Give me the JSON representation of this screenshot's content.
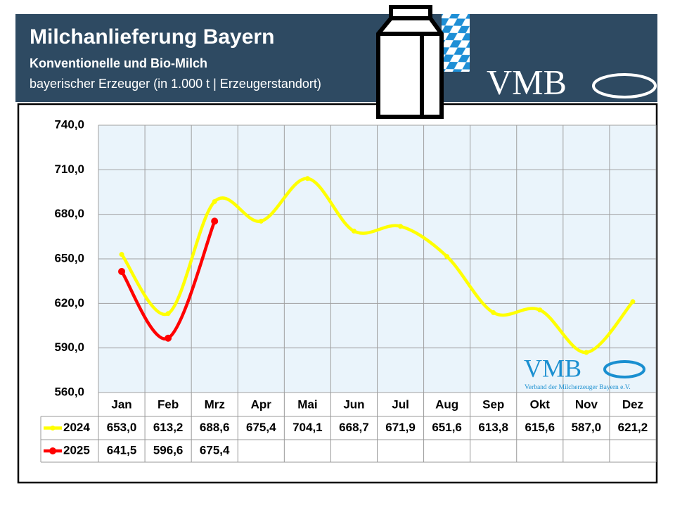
{
  "header": {
    "title": "Milchanlieferung Bayern",
    "subtitle": "Konventionelle und Bio-Milch",
    "note": "bayerischer Erzeuger (in 1.000 t | Erzeugerstandort)",
    "logo": "VMB"
  },
  "chart_data": {
    "type": "line",
    "categories": [
      "Jan",
      "Feb",
      "Mrz",
      "Apr",
      "Mai",
      "Jun",
      "Jul",
      "Aug",
      "Sep",
      "Okt",
      "Nov",
      "Dez"
    ],
    "series": [
      {
        "name": "2024",
        "color": "#ffff00",
        "values": [
          653.0,
          613.2,
          688.6,
          675.4,
          704.1,
          668.7,
          671.9,
          651.6,
          613.8,
          615.6,
          587.0,
          621.2
        ],
        "value_labels": [
          "653,0",
          "613,2",
          "688,6",
          "675,4",
          "704,1",
          "668,7",
          "671,9",
          "651,6",
          "613,8",
          "615,6",
          "587,0",
          "621,2"
        ]
      },
      {
        "name": "2025",
        "color": "#ff0000",
        "values": [
          641.5,
          596.6,
          675.4,
          null,
          null,
          null,
          null,
          null,
          null,
          null,
          null,
          null
        ],
        "value_labels": [
          "641,5",
          "596,6",
          "675,4",
          null,
          null,
          null,
          null,
          null,
          null,
          null,
          null,
          null
        ]
      }
    ],
    "ylim": [
      560,
      740
    ],
    "yticks": [
      {
        "value": 560,
        "label": "560,0"
      },
      {
        "value": 590,
        "label": "590,0"
      },
      {
        "value": 620,
        "label": "620,0"
      },
      {
        "value": 650,
        "label": "650,0"
      },
      {
        "value": 680,
        "label": "680,0"
      },
      {
        "value": 710,
        "label": "710,0"
      },
      {
        "value": 740,
        "label": "740,0"
      }
    ],
    "grid": true,
    "watermark": {
      "logo": "VMB",
      "caption": "Verband der Milcherzeuger Bayern e.V."
    }
  }
}
